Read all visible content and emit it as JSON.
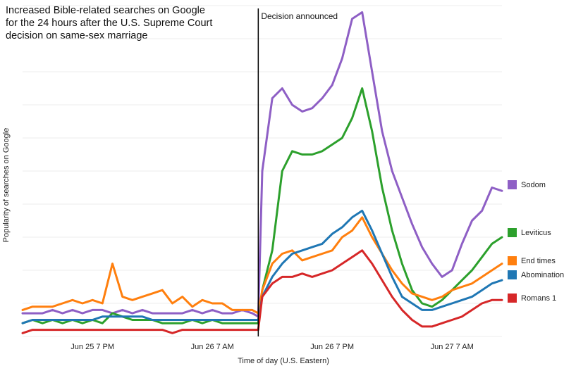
{
  "title_lines": [
    "Increased Bible-related searches on Google",
    "for the 24 hours after the U.S. Supreme Court",
    "decision on same-sex marriage"
  ],
  "annotation": "Decision announced",
  "chart_data": {
    "type": "line",
    "xlabel": "Time of day (U.S. Eastern)",
    "ylabel": "Popularity of searches on Google",
    "x_tick_labels": [
      "Jun 25 7 PM",
      "Jun 26 7 AM",
      "Jun 26 7 PM",
      "Jun 27 7 AM"
    ],
    "x_tick_hours": [
      7,
      19,
      31,
      43
    ],
    "x_range_hours": [
      0,
      48
    ],
    "y_range": [
      0,
      100
    ],
    "grid": "horizontal",
    "legend_placement": "right",
    "decision_hour": 23.6,
    "series": [
      {
        "name": "Sodom",
        "color": "#8e5fc5",
        "x": [
          0,
          1,
          2,
          3,
          4,
          5,
          6,
          7,
          8,
          9,
          10,
          11,
          12,
          13,
          14,
          15,
          16,
          17,
          18,
          19,
          20,
          21,
          22,
          23,
          23.6,
          24,
          25,
          26,
          27,
          28,
          29,
          30,
          31,
          32,
          33,
          34,
          35,
          36,
          37,
          38,
          39,
          40,
          41,
          42,
          43,
          44,
          45,
          46,
          47,
          48
        ],
        "values": [
          7,
          7,
          7,
          8,
          7,
          8,
          7,
          8,
          8,
          7,
          8,
          7,
          8,
          7,
          7,
          7,
          7,
          8,
          7,
          8,
          7,
          7,
          8,
          7,
          6,
          50,
          72,
          75,
          70,
          68,
          69,
          72,
          76,
          84,
          96,
          98,
          80,
          62,
          50,
          42,
          34,
          27,
          22,
          18,
          20,
          28,
          35,
          38,
          45,
          44
        ]
      },
      {
        "name": "Leviticus",
        "color": "#2ca02c",
        "x": [
          0,
          1,
          2,
          3,
          4,
          5,
          6,
          7,
          8,
          9,
          10,
          11,
          12,
          13,
          14,
          15,
          16,
          17,
          18,
          19,
          20,
          21,
          22,
          23,
          23.6,
          24,
          25,
          26,
          27,
          28,
          29,
          30,
          31,
          32,
          33,
          34,
          35,
          36,
          37,
          38,
          39,
          40,
          41,
          42,
          43,
          44,
          45,
          46,
          47,
          48
        ],
        "values": [
          4,
          5,
          4,
          5,
          4,
          5,
          4,
          5,
          4,
          7,
          6,
          5,
          5,
          5,
          4,
          4,
          4,
          5,
          4,
          5,
          4,
          4,
          4,
          4,
          4,
          14,
          26,
          50,
          56,
          55,
          55,
          56,
          58,
          60,
          66,
          75,
          62,
          45,
          32,
          22,
          14,
          10,
          9,
          11,
          14,
          17,
          20,
          24,
          28,
          30
        ]
      },
      {
        "name": "End times",
        "color": "#ff7f0e",
        "x": [
          0,
          1,
          2,
          3,
          4,
          5,
          6,
          7,
          8,
          9,
          10,
          11,
          12,
          13,
          14,
          15,
          16,
          17,
          18,
          19,
          20,
          21,
          22,
          23,
          23.6,
          24,
          25,
          26,
          27,
          28,
          29,
          30,
          31,
          32,
          33,
          34,
          35,
          36,
          37,
          38,
          39,
          40,
          41,
          42,
          43,
          44,
          45,
          46,
          47,
          48
        ],
        "values": [
          8,
          9,
          9,
          9,
          10,
          11,
          10,
          11,
          10,
          22,
          12,
          11,
          12,
          13,
          14,
          10,
          12,
          9,
          11,
          10,
          10,
          8,
          8,
          8,
          7,
          14,
          22,
          25,
          26,
          23,
          24,
          25,
          26,
          30,
          32,
          36,
          30,
          25,
          20,
          16,
          13,
          12,
          11,
          12,
          14,
          15,
          16,
          18,
          20,
          22
        ]
      },
      {
        "name": "Abomination",
        "color": "#1f77b4",
        "x": [
          0,
          1,
          2,
          3,
          4,
          5,
          6,
          7,
          8,
          9,
          10,
          11,
          12,
          13,
          14,
          15,
          16,
          17,
          18,
          19,
          20,
          21,
          22,
          23,
          23.6,
          24,
          25,
          26,
          27,
          28,
          29,
          30,
          31,
          32,
          33,
          34,
          35,
          36,
          37,
          38,
          39,
          40,
          41,
          42,
          43,
          44,
          45,
          46,
          47,
          48
        ],
        "values": [
          4,
          5,
          5,
          5,
          5,
          5,
          5,
          5,
          6,
          6,
          6,
          6,
          6,
          5,
          5,
          5,
          5,
          5,
          5,
          5,
          5,
          5,
          5,
          5,
          5,
          12,
          18,
          22,
          25,
          26,
          27,
          28,
          31,
          33,
          36,
          38,
          32,
          25,
          18,
          12,
          10,
          8,
          8,
          9,
          10,
          11,
          12,
          14,
          16,
          17
        ]
      },
      {
        "name": "Romans 1",
        "color": "#d62728",
        "x": [
          0,
          1,
          2,
          3,
          4,
          5,
          6,
          7,
          8,
          9,
          10,
          11,
          12,
          13,
          14,
          15,
          16,
          17,
          18,
          19,
          20,
          21,
          22,
          23,
          23.6,
          24,
          25,
          26,
          27,
          28,
          29,
          30,
          31,
          32,
          33,
          34,
          35,
          36,
          37,
          38,
          39,
          40,
          41,
          42,
          43,
          44,
          45,
          46,
          47,
          48
        ],
        "values": [
          1,
          2,
          2,
          2,
          2,
          2,
          2,
          2,
          2,
          2,
          2,
          2,
          2,
          2,
          2,
          1,
          2,
          2,
          2,
          2,
          2,
          2,
          2,
          2,
          2,
          12,
          16,
          18,
          18,
          19,
          18,
          19,
          20,
          22,
          24,
          26,
          22,
          17,
          12,
          8,
          5,
          3,
          3,
          4,
          5,
          6,
          8,
          10,
          11,
          11
        ]
      }
    ]
  }
}
